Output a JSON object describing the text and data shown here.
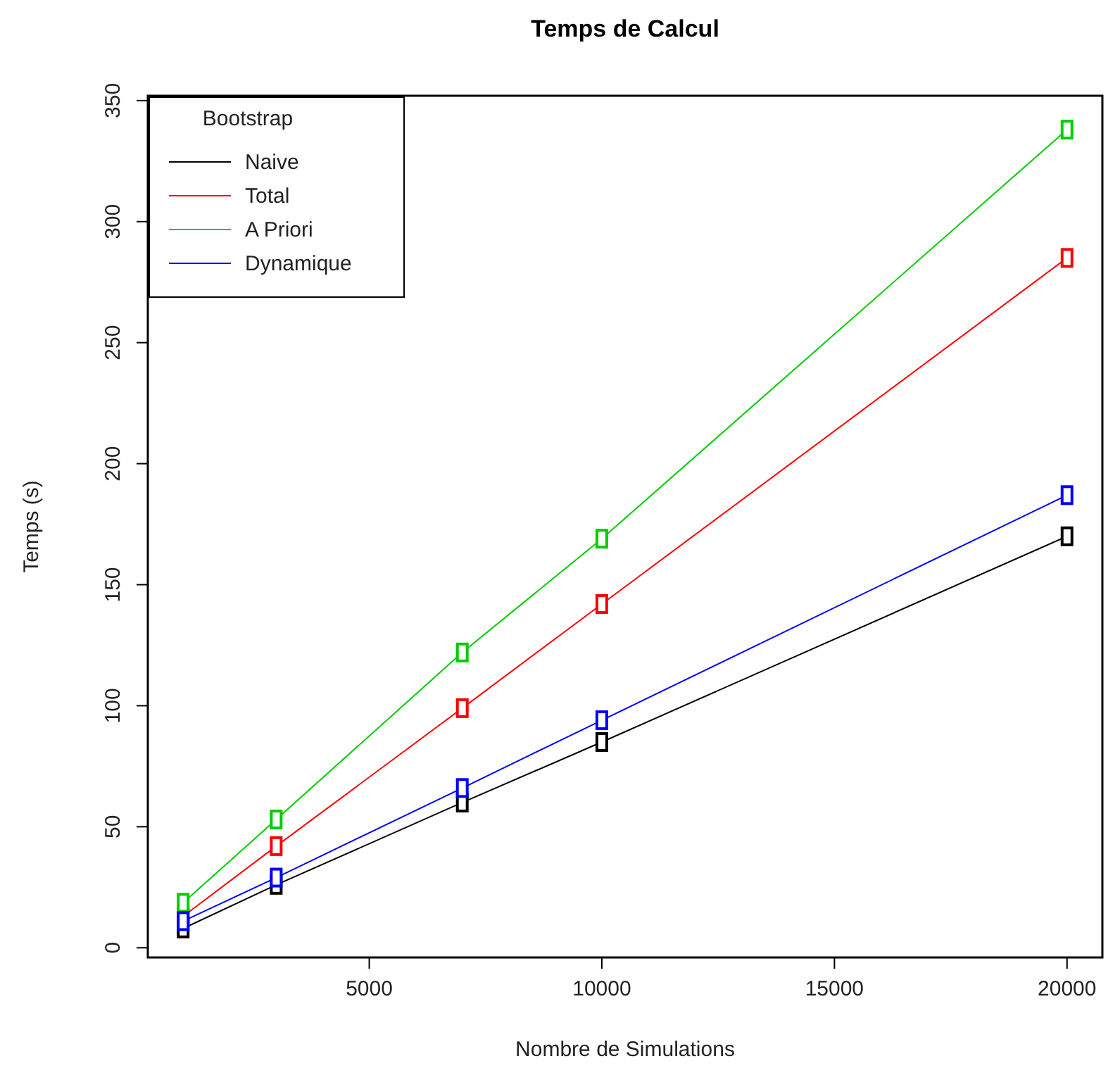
{
  "chart_data": {
    "type": "line",
    "title": "Temps de Calcul",
    "xlabel": "Nombre de Simulations",
    "ylabel": "Temps (s)",
    "legend_title": "Bootstrap",
    "legend": "top left",
    "marker": "square",
    "line_style": "solid",
    "grid": false,
    "x": [
      1000,
      3000,
      7000,
      10000,
      20000
    ],
    "xlim": [
      240,
      20760
    ],
    "xticks": [
      5000,
      10000,
      15000,
      20000
    ],
    "ylim": [
      -4,
      352
    ],
    "yticks": [
      0,
      50,
      100,
      150,
      200,
      250,
      300,
      350
    ],
    "series": [
      {
        "name": "Naive",
        "color": "#000000",
        "values": [
          8,
          26,
          60,
          85,
          170
        ]
      },
      {
        "name": "Total",
        "color": "#ff0000",
        "values": [
          13,
          42,
          99,
          142,
          285
        ]
      },
      {
        "name": "A Priori",
        "color": "#00cd00",
        "values": [
          18.6,
          53,
          122,
          169,
          338
        ]
      },
      {
        "name": "Dynamique",
        "color": "#0000ff",
        "values": [
          11,
          29,
          66,
          94,
          187
        ]
      }
    ]
  }
}
